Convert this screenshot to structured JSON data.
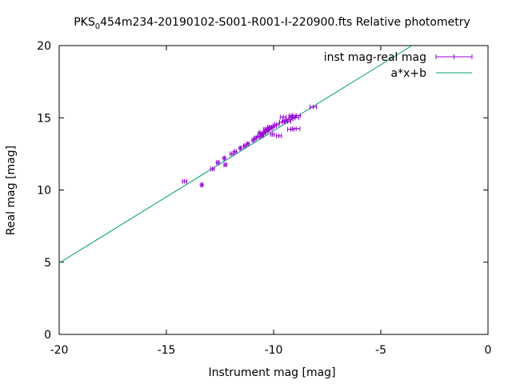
{
  "chart_data": {
    "type": "scatter",
    "title": "PKS_0454m234-20190102-S001-R001-I-220900.fts Relative photometry",
    "title_prefix": "PKS",
    "title_subscript": "0",
    "title_suffix": "454m234-20190102-S001-R001-I-220900.fts Relative photometry",
    "xlabel": "Instrument mag [mag]",
    "ylabel": "Real mag [mag]",
    "xlim": [
      -20,
      0
    ],
    "ylim": [
      0,
      20
    ],
    "x_ticks": [
      -20,
      -15,
      -10,
      -5,
      0
    ],
    "y_ticks": [
      0,
      5,
      10,
      15,
      20
    ],
    "x_tick_labels": [
      "-20",
      "-15",
      "-10",
      "-5",
      "0"
    ],
    "y_tick_labels": [
      "0",
      "5",
      "10",
      "15",
      "20"
    ],
    "grid": false,
    "legend_position": "top-right",
    "series": [
      {
        "name": "inst mag-real mag",
        "kind": "points-with-xerror",
        "color": "#9400d3",
        "points": [
          {
            "x": -14.15,
            "y": 10.6,
            "xerr": 0.1
          },
          {
            "x": -13.35,
            "y": 10.35,
            "xerr": 0.05
          },
          {
            "x": -12.85,
            "y": 11.45,
            "xerr": 0.08
          },
          {
            "x": -12.6,
            "y": 11.9,
            "xerr": 0.06
          },
          {
            "x": -12.25,
            "y": 11.75,
            "xerr": 0.06
          },
          {
            "x": -12.3,
            "y": 12.2,
            "xerr": 0.05
          },
          {
            "x": -11.95,
            "y": 12.5,
            "xerr": 0.08
          },
          {
            "x": -11.8,
            "y": 12.65,
            "xerr": 0.06
          },
          {
            "x": -11.55,
            "y": 12.9,
            "xerr": 0.05
          },
          {
            "x": -11.35,
            "y": 13.05,
            "xerr": 0.05
          },
          {
            "x": -11.2,
            "y": 13.2,
            "xerr": 0.05
          },
          {
            "x": -10.95,
            "y": 13.45,
            "xerr": 0.06
          },
          {
            "x": -10.85,
            "y": 13.6,
            "xerr": 0.05
          },
          {
            "x": -10.7,
            "y": 13.7,
            "xerr": 0.06
          },
          {
            "x": -10.55,
            "y": 13.85,
            "xerr": 0.05
          },
          {
            "x": -10.45,
            "y": 13.95,
            "xerr": 0.06
          },
          {
            "x": -10.35,
            "y": 14.05,
            "xerr": 0.06
          },
          {
            "x": -10.25,
            "y": 14.15,
            "xerr": 0.05
          },
          {
            "x": -10.55,
            "y": 13.75,
            "xerr": 0.06
          },
          {
            "x": -10.15,
            "y": 14.25,
            "xerr": 0.08
          },
          {
            "x": -10.1,
            "y": 14.35,
            "xerr": 0.1
          },
          {
            "x": -9.95,
            "y": 14.45,
            "xerr": 0.08
          },
          {
            "x": -9.85,
            "y": 14.55,
            "xerr": 0.1
          },
          {
            "x": -10.05,
            "y": 13.85,
            "xerr": 0.08
          },
          {
            "x": -9.75,
            "y": 13.75,
            "xerr": 0.12
          },
          {
            "x": -9.6,
            "y": 14.7,
            "xerr": 0.12
          },
          {
            "x": -9.55,
            "y": 15.05,
            "xerr": 0.14
          },
          {
            "x": -9.45,
            "y": 14.8,
            "xerr": 0.12
          },
          {
            "x": -9.35,
            "y": 14.75,
            "xerr": 0.15
          },
          {
            "x": -9.25,
            "y": 14.9,
            "xerr": 0.15
          },
          {
            "x": -9.15,
            "y": 15.05,
            "xerr": 0.14
          },
          {
            "x": -9.1,
            "y": 15.15,
            "xerr": 0.15
          },
          {
            "x": -9.0,
            "y": 15.0,
            "xerr": 0.18
          },
          {
            "x": -8.95,
            "y": 15.15,
            "xerr": 0.2
          },
          {
            "x": -9.2,
            "y": 14.2,
            "xerr": 0.15
          },
          {
            "x": -8.95,
            "y": 14.25,
            "xerr": 0.18
          },
          {
            "x": -8.15,
            "y": 15.75,
            "xerr": 0.15
          },
          {
            "x": -10.2,
            "y": 14.35,
            "xerr": 0.08
          },
          {
            "x": -10.4,
            "y": 14.2,
            "xerr": 0.06
          },
          {
            "x": -10.65,
            "y": 13.95,
            "xerr": 0.06
          }
        ]
      },
      {
        "name": "a*x+b",
        "kind": "line",
        "color": "#009e73",
        "slope": 0.915,
        "intercept": 23.25
      }
    ]
  }
}
